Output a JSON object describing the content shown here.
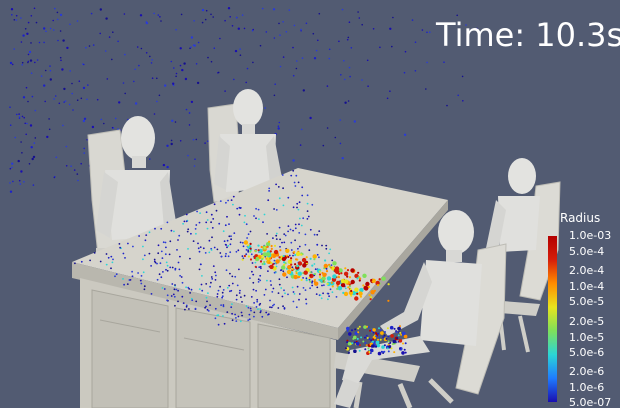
{
  "viewer": {
    "background_color": "#525b72",
    "time_label": "Time:",
    "time_value": "10.3s"
  },
  "legend": {
    "title": "Radius",
    "colormap": [
      "#1a0fb0",
      "#1f7bff",
      "#2bd6d6",
      "#7fe05a",
      "#e8e41e",
      "#ff8c00",
      "#d61e0a",
      "#b40000"
    ],
    "ticks": [
      "1.0e-03",
      "5.0e-4",
      "2.0e-4",
      "1.0e-4",
      "5.0e-5",
      "2.0e-5",
      "1.0e-5",
      "5.0e-6",
      "2.0e-6",
      "1.0e-6",
      "5.0e-07"
    ]
  },
  "scene": {
    "objects": [
      "conference-table",
      "office-chair",
      "mannequin",
      "droplet-particles"
    ]
  }
}
